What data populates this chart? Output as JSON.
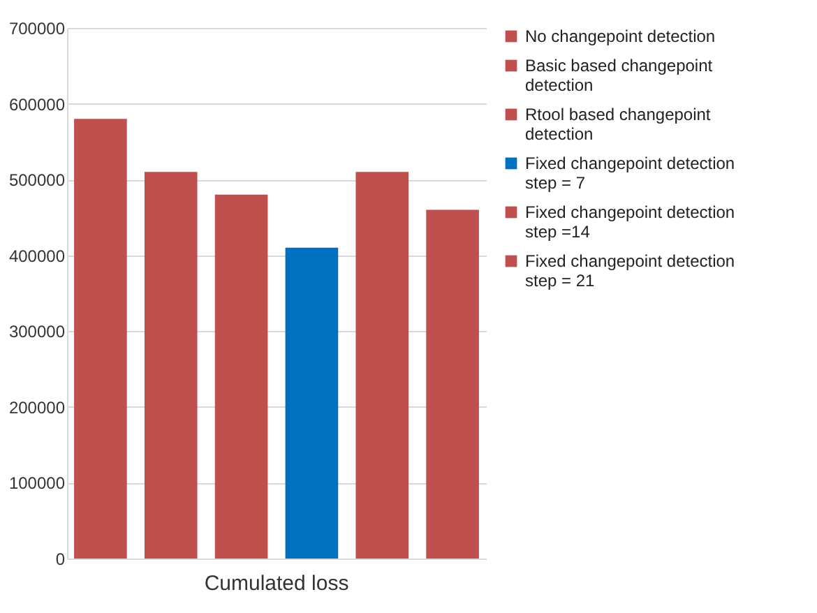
{
  "chart_data": {
    "type": "bar",
    "categories": [
      "Cumulated loss"
    ],
    "series": [
      {
        "name": "No changepoint detection",
        "color": "#c0504d",
        "values": [
          580000
        ]
      },
      {
        "name": "Basic based changepoint detection",
        "color": "#c0504d",
        "values": [
          510000
        ]
      },
      {
        "name": "Rtool based changepoint detection",
        "color": "#c0504d",
        "values": [
          480000
        ]
      },
      {
        "name": "Fixed changepoint detection step = 7",
        "color": "#0070c0",
        "values": [
          410000
        ]
      },
      {
        "name": "Fixed changepoint detection step =14",
        "color": "#c0504d",
        "values": [
          510000
        ]
      },
      {
        "name": "Fixed changepoint detection step = 21",
        "color": "#c0504d",
        "values": [
          460000
        ]
      }
    ],
    "ylim": [
      0,
      700000
    ],
    "yticks": [
      0,
      100000,
      200000,
      300000,
      400000,
      500000,
      600000,
      700000
    ],
    "grid": "y",
    "legend": "right"
  }
}
